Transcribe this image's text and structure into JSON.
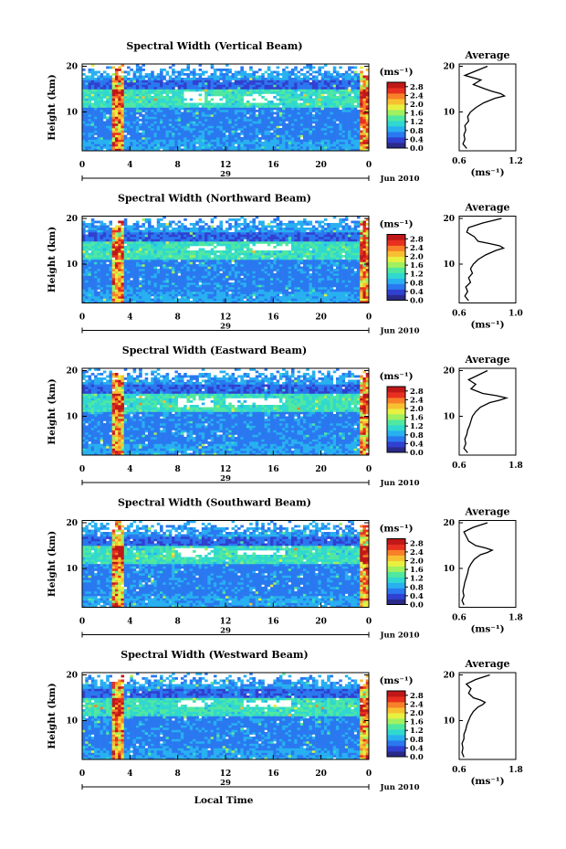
{
  "figure": {
    "xlabel": "Local Time",
    "date_label": "Jun 2010",
    "day_label": "29",
    "unit_label": "(ms⁻¹)",
    "average_title": "Average",
    "colormap": [
      "#ffffff",
      "#2a2a8a",
      "#3040d0",
      "#2a78f0",
      "#28b0f0",
      "#30d8d0",
      "#50e8a0",
      "#a0f060",
      "#e8f040",
      "#f8c030",
      "#f88028",
      "#e83020",
      "#c01818"
    ]
  },
  "chart_data": [
    {
      "type": "heatmap",
      "title": "Spectral Width (Vertical Beam)",
      "ylabel": "Height (km)",
      "xlabel": "",
      "x_ticks": [
        "0",
        "4",
        "8",
        "12",
        "16",
        "20",
        "0"
      ],
      "y_ticks": [
        "10",
        "20"
      ],
      "xlim": [
        0,
        24
      ],
      "ylim": [
        1.5,
        20.5
      ],
      "colorbar_ticks": [
        "0.0",
        "0.4",
        "0.8",
        "1.2",
        "1.6",
        "2.0",
        "2.4",
        "2.8"
      ],
      "colorbar_range": [
        0,
        3.0
      ],
      "gaps": [
        [
          8.5,
          10.2,
          12.0,
          14.5
        ],
        [
          10.5,
          12.0,
          11.8,
          13.5
        ],
        [
          13.5,
          16.5,
          12.2,
          14.0
        ]
      ],
      "hot_columns": [
        3.0,
        23.7
      ],
      "profile": {
        "title": "Average",
        "xlabel": "(ms⁻¹)",
        "x_ticks": [
          "0.6",
          "1.2"
        ],
        "xlim": [
          0.6,
          1.2
        ],
        "y_ticks": [
          "10",
          "20"
        ],
        "ylim": [
          1.5,
          20.5
        ],
        "height": [
          2,
          3,
          4,
          5,
          6,
          7,
          8,
          9,
          10,
          11,
          12,
          13,
          13.5,
          14,
          14.5,
          15,
          16,
          17,
          18,
          19,
          20
        ],
        "value": [
          0.68,
          0.64,
          0.66,
          0.65,
          0.67,
          0.66,
          0.7,
          0.69,
          0.72,
          0.78,
          0.86,
          0.98,
          1.08,
          1.04,
          0.95,
          0.88,
          0.75,
          0.83,
          0.66,
          0.78,
          0.9
        ]
      }
    },
    {
      "type": "heatmap",
      "title": "Spectral Width (Northward Beam)",
      "ylabel": "Height (km)",
      "xlabel": "",
      "x_ticks": [
        "0",
        "4",
        "8",
        "12",
        "16",
        "20",
        "0"
      ],
      "y_ticks": [
        "10",
        "20"
      ],
      "xlim": [
        0,
        24
      ],
      "ylim": [
        1.5,
        20.5
      ],
      "colorbar_ticks": [
        "0.0",
        "0.4",
        "0.8",
        "1.2",
        "1.6",
        "2.0",
        "2.4",
        "2.8"
      ],
      "colorbar_range": [
        0,
        3.0
      ],
      "gaps": [
        [
          9.0,
          12.0,
          13.0,
          14.0
        ],
        [
          14.0,
          17.5,
          13.2,
          14.3
        ]
      ],
      "hot_columns": [
        3.0,
        23.7
      ],
      "profile": {
        "title": "Average",
        "xlabel": "(ms⁻¹)",
        "x_ticks": [
          "0.6",
          "1.0"
        ],
        "xlim": [
          0.6,
          1.2
        ],
        "y_ticks": [
          "10",
          "20"
        ],
        "ylim": [
          1.5,
          20.5
        ],
        "height": [
          2,
          3,
          4,
          5,
          6,
          7,
          8,
          9,
          10,
          11,
          12,
          13,
          13.5,
          14,
          14.5,
          15,
          16,
          17,
          18,
          19,
          20
        ],
        "value": [
          0.7,
          0.66,
          0.69,
          0.67,
          0.72,
          0.7,
          0.74,
          0.72,
          0.75,
          0.8,
          0.88,
          0.99,
          1.07,
          1.03,
          0.92,
          0.8,
          0.76,
          0.68,
          0.7,
          0.85,
          1.05
        ]
      }
    },
    {
      "type": "heatmap",
      "title": "Spectral Width (Eastward Beam)",
      "ylabel": "Height (km)",
      "xlabel": "",
      "x_ticks": [
        "0",
        "4",
        "8",
        "12",
        "16",
        "20",
        "0"
      ],
      "y_ticks": [
        "10",
        "20"
      ],
      "xlim": [
        0,
        24
      ],
      "ylim": [
        1.5,
        20.5
      ],
      "colorbar_ticks": [
        "0.0",
        "0.4",
        "0.8",
        "1.2",
        "1.6",
        "2.0",
        "2.4",
        "2.8"
      ],
      "colorbar_range": [
        0,
        3.0
      ],
      "gaps": [
        [
          8.0,
          11.0,
          12.0,
          14.0
        ],
        [
          12.0,
          17.0,
          12.5,
          14.2
        ]
      ],
      "hot_columns": [
        3.0,
        23.7
      ],
      "profile": {
        "title": "Average",
        "xlabel": "",
        "x_ticks": [
          "0.6",
          "1.8"
        ],
        "xlim": [
          0.6,
          1.8
        ],
        "y_ticks": [
          "10",
          "20"
        ],
        "ylim": [
          1.5,
          20.5
        ],
        "height": [
          2,
          3,
          4,
          5,
          6,
          7,
          8,
          9,
          10,
          11,
          12,
          13,
          13.5,
          14,
          14.5,
          15,
          16,
          17,
          18,
          19,
          20
        ],
        "value": [
          0.78,
          0.7,
          0.74,
          0.72,
          0.76,
          0.78,
          0.82,
          0.85,
          0.88,
          0.95,
          1.05,
          1.25,
          1.45,
          1.6,
          1.4,
          1.1,
          0.85,
          0.95,
          0.8,
          1.0,
          1.2
        ]
      }
    },
    {
      "type": "heatmap",
      "title": "Spectral Width (Southward Beam)",
      "ylabel": "Height (km)",
      "xlabel": "",
      "x_ticks": [
        "0",
        "4",
        "8",
        "12",
        "16",
        "20",
        "0"
      ],
      "y_ticks": [
        "10",
        "20"
      ],
      "xlim": [
        0,
        24
      ],
      "ylim": [
        1.5,
        20.5
      ],
      "colorbar_ticks": [
        "0.0",
        "0.4",
        "0.8",
        "1.2",
        "1.6",
        "2.0",
        "2.4",
        "2.8"
      ],
      "colorbar_range": [
        0,
        3.0
      ],
      "gaps": [
        [
          8.0,
          11.0,
          12.5,
          14.5
        ],
        [
          13.0,
          17.0,
          12.8,
          14.0
        ]
      ],
      "hot_columns": [
        3.0,
        23.7
      ],
      "profile": {
        "title": "Average",
        "xlabel": "(ms⁻¹)",
        "x_ticks": [
          "0.6",
          "1.8"
        ],
        "xlim": [
          0.6,
          1.8
        ],
        "y_ticks": [
          "10",
          "20"
        ],
        "ylim": [
          1.5,
          20.5
        ],
        "height": [
          2,
          3,
          4,
          5,
          6,
          7,
          8,
          9,
          10,
          11,
          12,
          13,
          13.5,
          14,
          14.5,
          15,
          16,
          17,
          18,
          19,
          20
        ],
        "value": [
          0.7,
          0.66,
          0.7,
          0.68,
          0.7,
          0.72,
          0.75,
          0.78,
          0.8,
          0.85,
          0.92,
          1.05,
          1.2,
          1.3,
          1.15,
          0.95,
          0.8,
          0.75,
          0.7,
          0.9,
          1.2
        ]
      }
    },
    {
      "type": "heatmap",
      "title": "Spectral Width (Westward Beam)",
      "ylabel": "Height (km)",
      "xlabel": "Local Time",
      "x_ticks": [
        "0",
        "4",
        "8",
        "12",
        "16",
        "20",
        "0"
      ],
      "y_ticks": [
        "10",
        "20"
      ],
      "xlim": [
        0,
        24
      ],
      "ylim": [
        1.5,
        20.5
      ],
      "colorbar_ticks": [
        "0.0",
        "0.4",
        "0.8",
        "1.2",
        "1.6",
        "2.0",
        "2.4",
        "2.8"
      ],
      "colorbar_range": [
        0,
        3.0
      ],
      "gaps": [
        [
          8.0,
          11.0,
          13.0,
          14.5
        ],
        [
          13.5,
          17.5,
          13.2,
          14.5
        ]
      ],
      "hot_columns": [
        3.0,
        23.7
      ],
      "profile": {
        "title": "Average",
        "xlabel": "(ms⁻¹)",
        "x_ticks": [
          "0.6",
          "1.8"
        ],
        "xlim": [
          0.6,
          1.8
        ],
        "y_ticks": [
          "10",
          "20"
        ],
        "ylim": [
          1.5,
          20.5
        ],
        "height": [
          2,
          3,
          4,
          5,
          6,
          7,
          8,
          9,
          10,
          11,
          12,
          13,
          13.5,
          14,
          14.5,
          15,
          16,
          17,
          18,
          19,
          20
        ],
        "value": [
          0.7,
          0.66,
          0.68,
          0.66,
          0.7,
          0.7,
          0.74,
          0.76,
          0.8,
          0.84,
          0.9,
          1.0,
          1.1,
          1.15,
          1.05,
          0.9,
          0.8,
          0.85,
          0.75,
          0.95,
          1.25
        ]
      }
    }
  ]
}
